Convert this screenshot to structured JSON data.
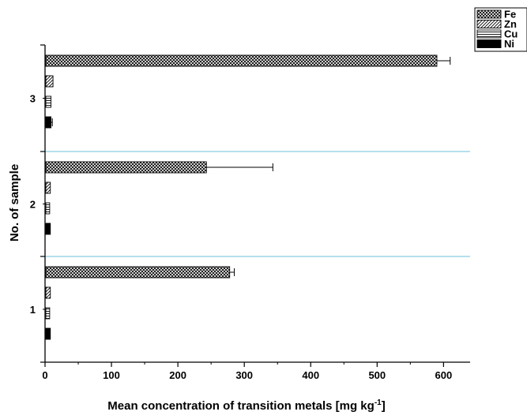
{
  "chart_data": {
    "type": "bar",
    "orientation": "horizontal",
    "xlabel_main": "Mean concentration of transition metals [mg kg",
    "xlabel_sup": "-1",
    "xlabel_close": "]",
    "ylabel": "No. of sample",
    "xlim": [
      0,
      640
    ],
    "xticks": [
      0,
      100,
      200,
      300,
      400,
      500,
      600
    ],
    "x_tick_labels": [
      "0",
      "100",
      "200",
      "300",
      "400",
      "500",
      "600"
    ],
    "categories": [
      "1",
      "2",
      "3"
    ],
    "series": [
      {
        "name": "Fe",
        "values": [
          278,
          243,
          590
        ],
        "errors": [
          7,
          100,
          20
        ],
        "pattern": "crosshatch"
      },
      {
        "name": "Zn",
        "values": [
          8,
          8,
          12
        ],
        "errors": [
          0,
          0,
          0
        ],
        "pattern": "diagonal"
      },
      {
        "name": "Cu",
        "values": [
          7,
          7,
          9
        ],
        "errors": [
          0,
          0,
          0
        ],
        "pattern": "horizontal"
      },
      {
        "name": "Ni",
        "values": [
          8,
          8,
          9
        ],
        "errors": [
          0,
          0,
          2
        ],
        "pattern": "solid"
      }
    ],
    "grid": false,
    "separators": true,
    "separator_color": "#87cee0",
    "legend_position": "top-right"
  }
}
